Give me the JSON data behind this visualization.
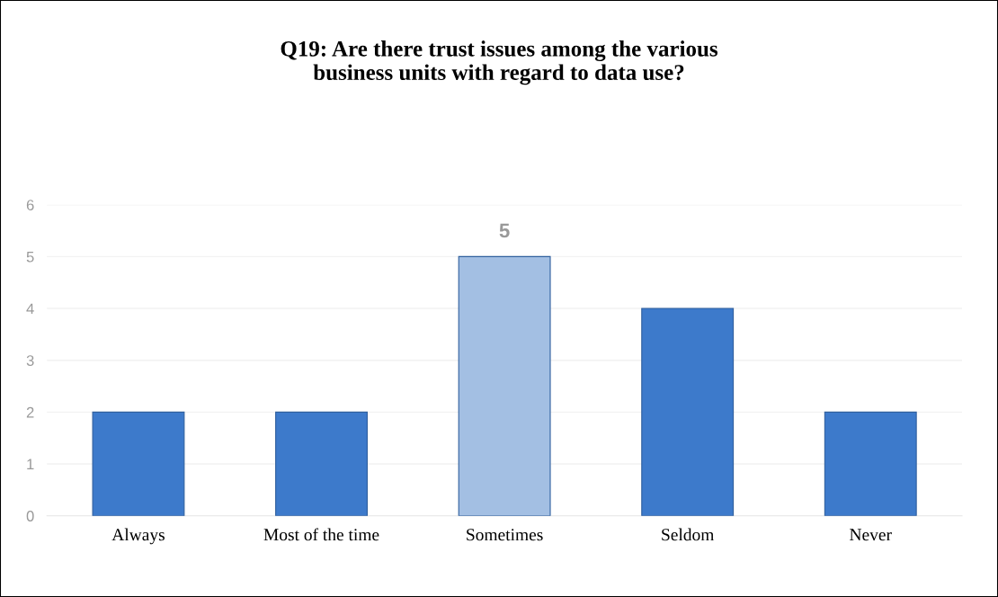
{
  "chart_data": {
    "type": "bar",
    "title": "Q19: Are there trust issues among the various\nbusiness units with regard to data use?",
    "categories": [
      "Always",
      "Most of the time",
      "Sometimes",
      "Seldom",
      "Never"
    ],
    "values": [
      2,
      2,
      5,
      4,
      2
    ],
    "colors": [
      "#3d7acb",
      "#3d7acb",
      "#a3bfe3",
      "#3d7acb",
      "#3d7acb"
    ],
    "value_labels": [
      null,
      null,
      "5",
      null,
      null
    ],
    "ylim": [
      0,
      6
    ],
    "yticks": [
      0,
      1,
      2,
      3,
      4,
      5,
      6
    ],
    "grid": "y",
    "legend": false
  }
}
